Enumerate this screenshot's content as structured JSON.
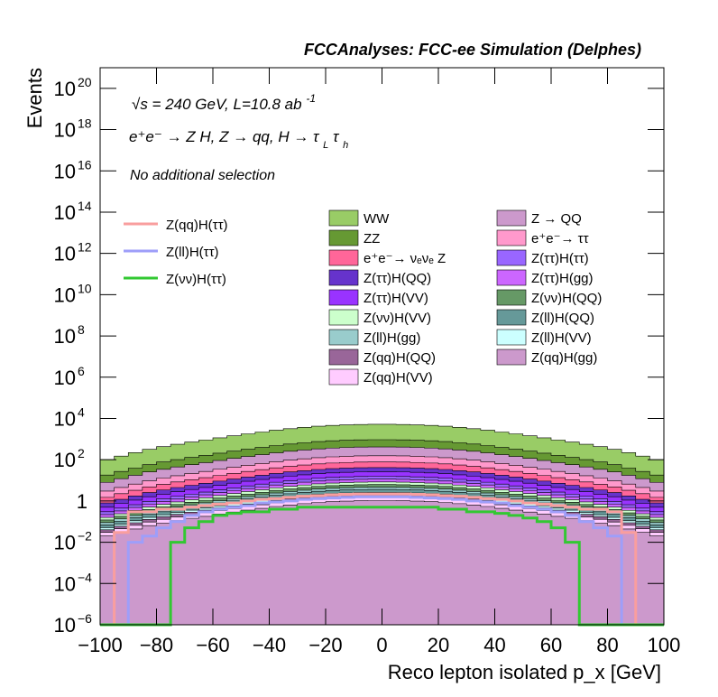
{
  "chart_data": {
    "type": "bar",
    "title": "FCCAnalyses: FCC-ee Simulation (Delphes)",
    "xlabel": "Reco lepton isolated p_x [GeV]",
    "ylabel": "Events",
    "xlim": [
      -100,
      100
    ],
    "ylim": [
      1e-06,
      1e+21
    ],
    "yscale": "log",
    "stacked": true,
    "x_ticks": [
      "-100",
      "-80",
      "-60",
      "-40",
      "-20",
      "0",
      "20",
      "40",
      "60",
      "80",
      "100"
    ],
    "y_ticks": [
      {
        "base": "10",
        "exp": "-6"
      },
      {
        "base": "10",
        "exp": "-4"
      },
      {
        "base": "10",
        "exp": "-2"
      },
      {
        "base": "1",
        "exp": ""
      },
      {
        "base": "10",
        "exp": "2"
      },
      {
        "base": "10",
        "exp": "4"
      },
      {
        "base": "10",
        "exp": "6"
      },
      {
        "base": "10",
        "exp": "8"
      },
      {
        "base": "10",
        "exp": "10"
      },
      {
        "base": "10",
        "exp": "12"
      },
      {
        "base": "10",
        "exp": "14"
      },
      {
        "base": "10",
        "exp": "16"
      },
      {
        "base": "10",
        "exp": "18"
      },
      {
        "base": "10",
        "exp": "20"
      }
    ],
    "annotations": {
      "energy": "√s = 240 GeV, L=10.8 ab",
      "energy_sup": "-1",
      "process": "e⁺e⁻ → Z H, Z → qq, H → τ",
      "process_sub1": "L",
      "process_tau": "τ",
      "process_sub2": "h",
      "selection": "No additional selection"
    },
    "stack_totals_approx": {
      "x_bin_centers": [
        -97.5,
        -92.5,
        -87.5,
        -82.5,
        -77.5,
        -72.5,
        -67.5,
        -62.5,
        -57.5,
        -52.5,
        -47.5,
        -42.5,
        -37.5,
        -32.5,
        -27.5,
        -22.5,
        -17.5,
        -12.5,
        -7.5,
        -2.5,
        2.5,
        7.5,
        12.5,
        17.5,
        22.5,
        27.5,
        32.5,
        37.5,
        42.5,
        47.5,
        52.5,
        57.5,
        62.5,
        67.5,
        72.5,
        77.5,
        82.5,
        87.5,
        92.5,
        97.5
      ],
      "total": [
        100,
        150,
        220,
        320,
        430,
        560,
        720,
        900,
        1150,
        1450,
        1800,
        2200,
        2700,
        3200,
        3700,
        4200,
        4600,
        4900,
        5100,
        5200,
        5200,
        5100,
        4900,
        4600,
        4200,
        3700,
        3200,
        2700,
        2200,
        1800,
        1450,
        1150,
        900,
        720,
        560,
        430,
        320,
        220,
        150,
        100
      ]
    },
    "overlays": [
      {
        "name": "Z(qq)H(ττ)",
        "color": "#f99e9e",
        "values": [
          0,
          0.03,
          0.3,
          0.3,
          0.4,
          0.4,
          0.5,
          0.6,
          0.7,
          0.8,
          1.0,
          1.2,
          1.3,
          1.5,
          1.7,
          1.8,
          2.0,
          2.1,
          2.2,
          2.2,
          2.2,
          2.2,
          2.1,
          2.0,
          1.8,
          1.7,
          1.5,
          1.3,
          1.2,
          1.0,
          0.8,
          0.7,
          0.6,
          0.5,
          0.4,
          0.4,
          0.3,
          0.03,
          0,
          0
        ]
      },
      {
        "name": "Z(ll)H(ττ)",
        "color": "#9e9ef9",
        "values": [
          0,
          0,
          0.01,
          0.02,
          0.05,
          0.1,
          0.2,
          0.3,
          0.4,
          0.5,
          0.6,
          0.8,
          0.9,
          1.0,
          1.2,
          1.3,
          1.4,
          1.5,
          1.6,
          1.6,
          1.6,
          1.6,
          1.5,
          1.4,
          1.3,
          1.2,
          1.0,
          0.9,
          0.8,
          0.6,
          0.5,
          0.4,
          0.3,
          0.2,
          0.1,
          0.05,
          0.02,
          0,
          0,
          0
        ]
      },
      {
        "name": "Z(νν)H(ττ)",
        "color": "#32c832",
        "values": [
          0,
          0,
          0,
          0,
          0,
          0.01,
          0.05,
          0.1,
          0.2,
          0.25,
          0.3,
          0.3,
          0.4,
          0.4,
          0.5,
          0.5,
          0.5,
          0.5,
          0.5,
          0.5,
          0.5,
          0.5,
          0.5,
          0.5,
          0.4,
          0.4,
          0.3,
          0.3,
          0.25,
          0.2,
          0.15,
          0.1,
          0.05,
          0.01,
          0,
          0,
          0,
          0,
          0,
          0
        ]
      }
    ],
    "series": [
      {
        "name": "WW",
        "color": "#99cc66"
      },
      {
        "name": "ZZ",
        "color": "#669933"
      },
      {
        "name": "e⁺e⁻→ νₑνₑ Z",
        "color": "#ff6699"
      },
      {
        "name": "Z(ττ)H(QQ)",
        "color": "#6633cc"
      },
      {
        "name": "Z(ττ)H(VV)",
        "color": "#9933ff"
      },
      {
        "name": "Z(νν)H(VV)",
        "color": "#ccffcc"
      },
      {
        "name": "Z(ll)H(gg)",
        "color": "#99cccc"
      },
      {
        "name": "Z(qq)H(QQ)",
        "color": "#996699"
      },
      {
        "name": "Z(qq)H(VV)",
        "color": "#ffccff"
      },
      {
        "name": "Z → QQ",
        "color": "#cc99cc"
      },
      {
        "name": "e⁺e⁻→ ττ",
        "color": "#ff99cc"
      },
      {
        "name": "Z(ττ)H(ττ)",
        "color": "#9966ff"
      },
      {
        "name": "Z(ττ)H(gg)",
        "color": "#cc66ff"
      },
      {
        "name": "Z(νν)H(QQ)",
        "color": "#669966"
      },
      {
        "name": "Z(ll)H(QQ)",
        "color": "#669999"
      },
      {
        "name": "Z(ll)H(VV)",
        "color": "#ccffff"
      },
      {
        "name": "Z(qq)H(gg)",
        "color": "#cc99cc"
      }
    ],
    "legend_placement": "top-left and center-right",
    "grid": false
  }
}
